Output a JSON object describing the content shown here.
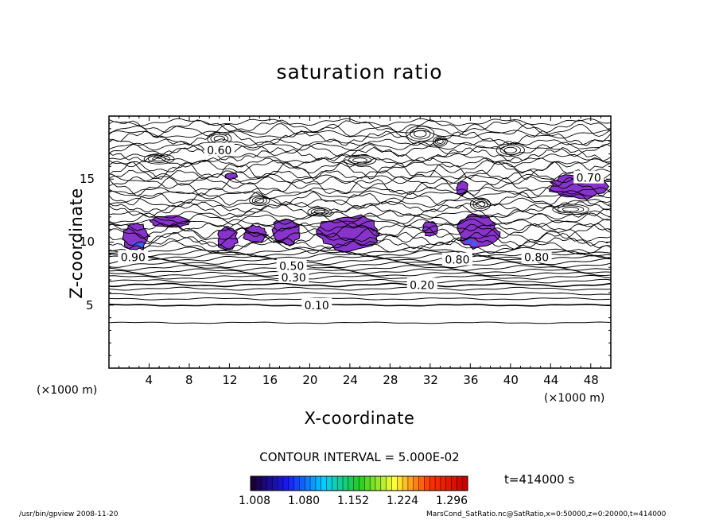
{
  "chart_data": {
    "type": "contour",
    "title": "saturation ratio",
    "xlabel": "X-coordinate",
    "ylabel": "Z-coordinate",
    "x_unit": "(×1000 m)",
    "y_unit": "(×1000 m)",
    "xlim": [
      0,
      50
    ],
    "ylim": [
      0,
      20
    ],
    "x_ticks": [
      "4",
      "8",
      "12",
      "16",
      "20",
      "24",
      "28",
      "32",
      "36",
      "40",
      "44",
      "48"
    ],
    "y_ticks": [
      "5",
      "10",
      "15"
    ],
    "contour_interval_label": "CONTOUR INTERVAL = 5.000E-02",
    "time_label": "t=414000 s",
    "contour_labels": [
      "0.10",
      "0.20",
      "0.30",
      "0.50",
      "0.80",
      "0.90",
      "0.70",
      "0.60"
    ],
    "colorbar": {
      "range": [
        1.008,
        1.296
      ],
      "ticks": [
        "1.008",
        "1.080",
        "1.152",
        "1.224",
        "1.296"
      ],
      "colors": [
        "#1a0033",
        "#1a1aff",
        "#00d0ff",
        "#22cc22",
        "#ffff33",
        "#ff3300",
        "#cc0000"
      ]
    },
    "fill_color": "#8833cc"
  },
  "footer": {
    "left": "/usr/bin/gpview  2008-11-20",
    "right": "MarsCond_SatRatio.nc@SatRatio,x=0:50000,z=0:20000,t=414000"
  }
}
